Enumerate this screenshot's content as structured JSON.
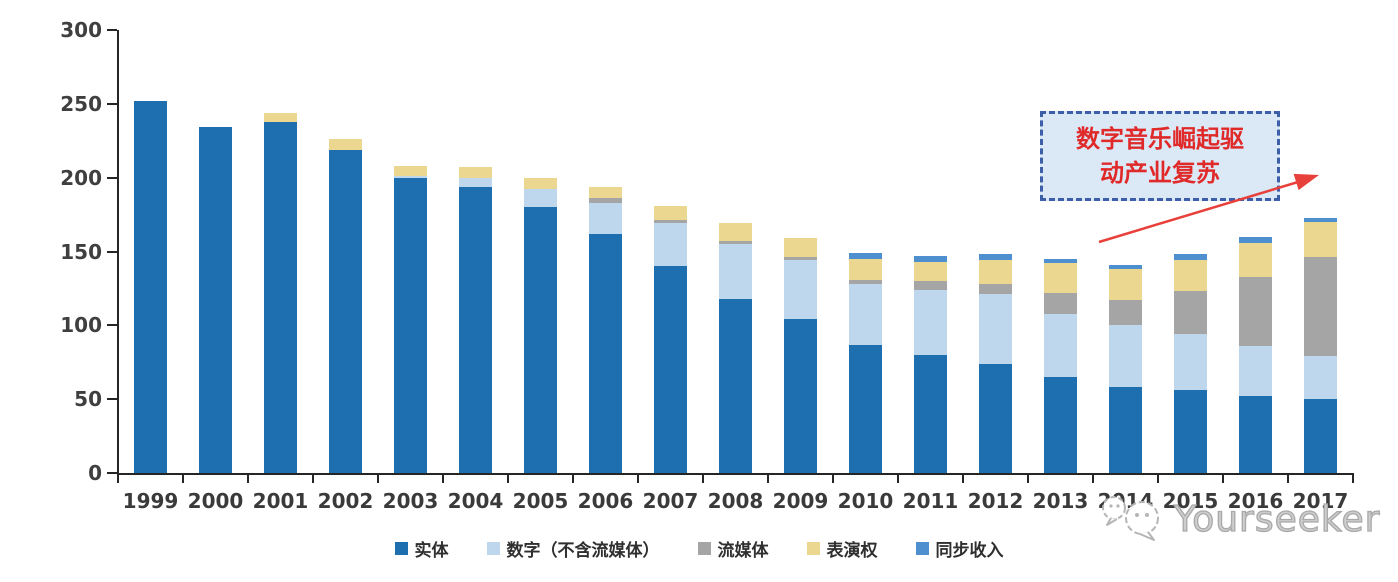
{
  "chart_data": {
    "type": "bar",
    "stacked": true,
    "title": "",
    "xlabel": "",
    "ylabel": "",
    "grid": false,
    "legend_position": "bottom",
    "ylim": [
      0,
      300
    ],
    "y_ticks": [
      0,
      50,
      100,
      150,
      200,
      250,
      300
    ],
    "categories": [
      "1999",
      "2000",
      "2001",
      "2002",
      "2003",
      "2004",
      "2005",
      "2006",
      "2007",
      "2008",
      "2009",
      "2010",
      "2011",
      "2012",
      "2013",
      "2014",
      "2015",
      "2016",
      "2017"
    ],
    "series": [
      {
        "name": "实体",
        "color": "#1d6fb0",
        "values": [
          252,
          234,
          238,
          219,
          200,
          194,
          180,
          162,
          140,
          118,
          104,
          87,
          80,
          74,
          65,
          58,
          56,
          52,
          50
        ]
      },
      {
        "name": "数字（不含流媒体）",
        "color": "#bed7ec",
        "values": [
          0,
          0,
          0,
          0,
          1,
          6,
          12,
          21,
          29,
          37,
          40,
          41,
          44,
          47,
          43,
          42,
          38,
          34,
          29
        ]
      },
      {
        "name": "流媒体",
        "color": "#a5a5a5",
        "values": [
          0,
          0,
          0,
          0,
          0,
          0,
          0,
          3,
          2,
          2,
          2,
          3,
          6,
          7,
          14,
          17,
          29,
          47,
          67
        ]
      },
      {
        "name": "表演权",
        "color": "#ebd78f",
        "values": [
          0,
          0,
          6,
          7,
          7,
          7,
          8,
          8,
          10,
          12,
          13,
          14,
          13,
          16,
          20,
          21,
          21,
          23,
          24
        ]
      },
      {
        "name": "同步收入",
        "color": "#4e8fd0",
        "values": [
          0,
          0,
          0,
          0,
          0,
          0,
          0,
          0,
          0,
          0,
          0,
          4,
          4,
          4,
          3,
          3,
          4,
          4,
          3
        ]
      }
    ],
    "totals": [
      252,
      234,
      244,
      226,
      208,
      207,
      200,
      194,
      181,
      169,
      159,
      149,
      147,
      148,
      145,
      141,
      148,
      160,
      173
    ]
  },
  "axis": {
    "line_color": "#262626",
    "label_color": "#3f3f3f"
  },
  "annotation": {
    "line1": "数字音乐崛起驱",
    "line2": "动产业复苏",
    "text_color": "#e02a2a",
    "border_color": "#3d5ea8",
    "fill_color": "#dbe8f6",
    "arrow_color": "#e8413c"
  },
  "watermark": {
    "text": "Yourseeker",
    "color": "#b5b5b5"
  }
}
